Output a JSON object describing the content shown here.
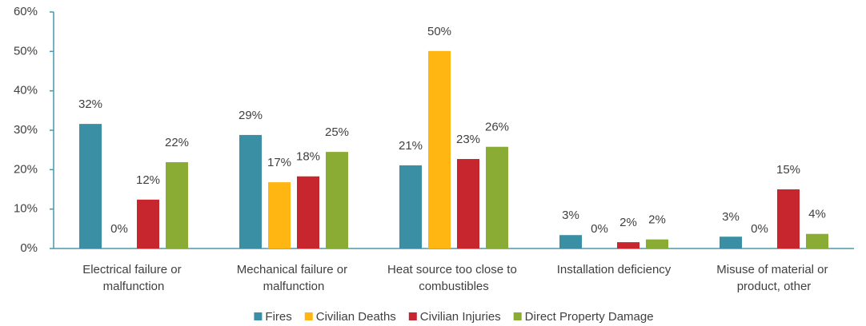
{
  "chart_data": {
    "type": "bar",
    "categories": [
      "Electrical failure or malfunction",
      "Mechanical failure or malfunction",
      "Heat source too close to combustibles",
      "Installation deficiency",
      "Misuse of material or product, other"
    ],
    "series": [
      {
        "name": "Fires",
        "color": "#3a8fa5",
        "values": [
          31.6,
          28.8,
          21.1,
          3.4,
          3.0
        ],
        "value_labels": [
          "32%",
          "29%",
          "21%",
          "3%",
          "3%"
        ]
      },
      {
        "name": "Civilian Deaths",
        "color": "#ffb612",
        "values": [
          0,
          16.8,
          50.1,
          0,
          0
        ],
        "value_labels": [
          "0%",
          "17%",
          "50%",
          "0%",
          "0%"
        ]
      },
      {
        "name": "Civilian Injuries",
        "color": "#c8262f",
        "values": [
          12.4,
          18.3,
          22.7,
          1.6,
          15.0
        ],
        "value_labels": [
          "12%",
          "18%",
          "23%",
          "2%",
          "15%"
        ]
      },
      {
        "name": "Direct Property Damage",
        "color": "#8aab34",
        "values": [
          21.9,
          24.5,
          25.8,
          2.3,
          3.7
        ],
        "value_labels": [
          "22%",
          "25%",
          "26%",
          "2%",
          "4%"
        ]
      }
    ],
    "ylim": [
      0,
      60
    ],
    "yticks": [
      {
        "value": 0,
        "label": "0%"
      },
      {
        "value": 10,
        "label": "10%"
      },
      {
        "value": 20,
        "label": "20%"
      },
      {
        "value": 30,
        "label": "30%"
      },
      {
        "value": 40,
        "label": "40%"
      },
      {
        "value": 50,
        "label": "50%"
      },
      {
        "value": 60,
        "label": "60%"
      }
    ],
    "legend": "bottom"
  }
}
